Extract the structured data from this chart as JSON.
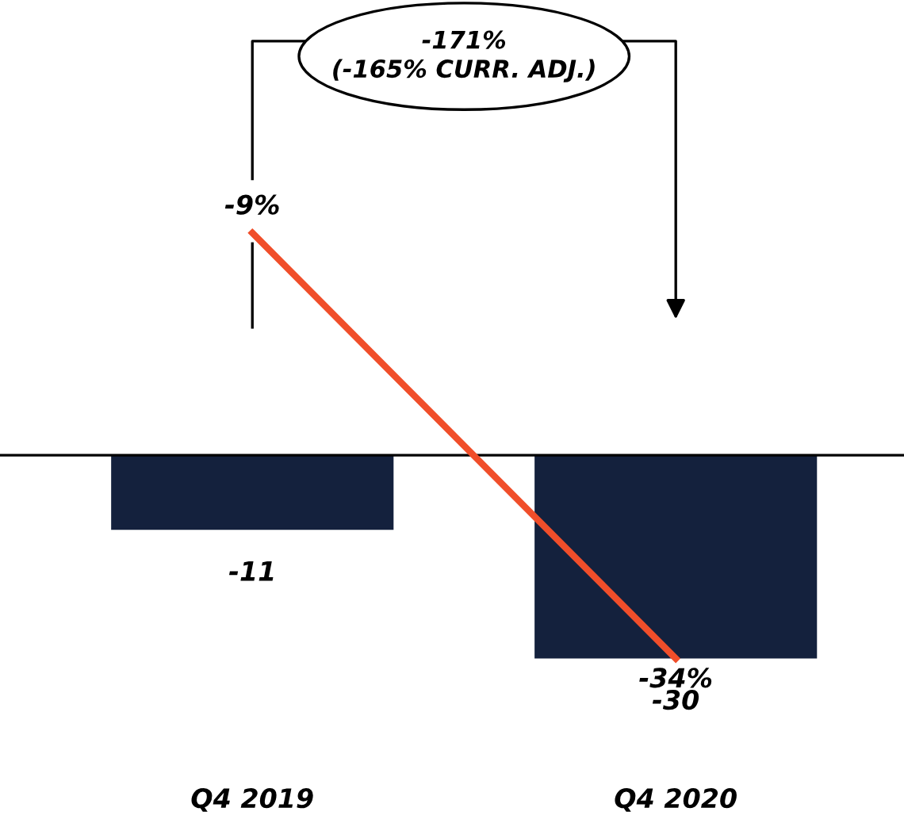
{
  "chart_data": {
    "type": "bar",
    "categories": [
      "Q4 2019",
      "Q4 2020"
    ],
    "series": [
      {
        "color": "#14213d",
        "values": [
          -11,
          -30
        ],
        "value_labels": [
          "-11",
          "-30"
        ]
      },
      {
        "type": "line",
        "axis": "y2",
        "color": "#f04e2a",
        "values": [
          -9,
          -34
        ],
        "value_labels": [
          "-9%",
          "-34%"
        ]
      }
    ],
    "tick_labels": "x",
    "marker": "none",
    "line_style": "solid",
    "annotations": [
      "-171%\n(-165% CURR. ADJ.)"
    ]
  }
}
